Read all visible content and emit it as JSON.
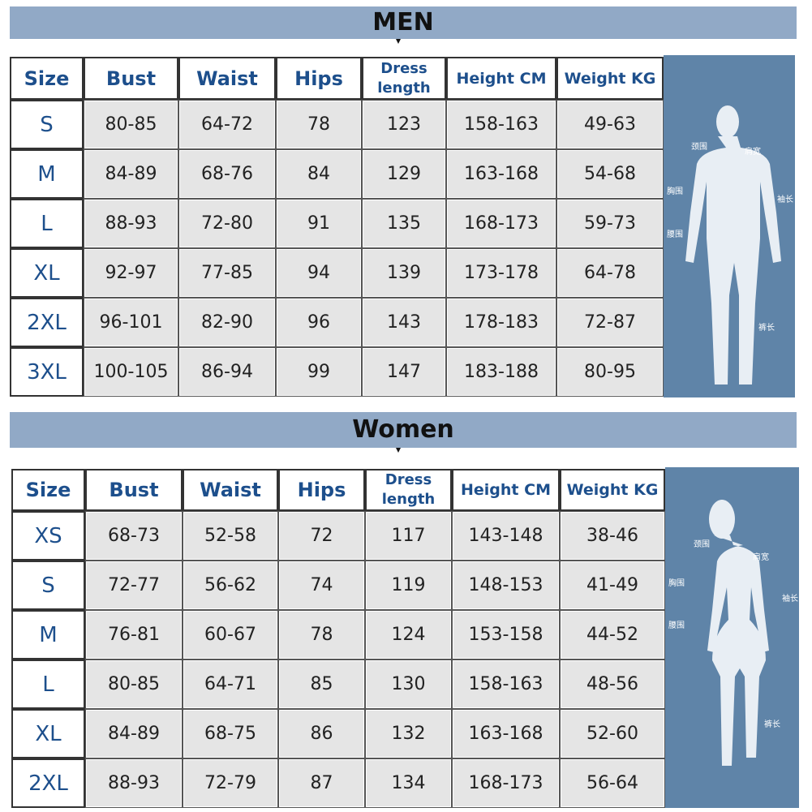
{
  "men": {
    "title": "MEN",
    "table": {
      "header": [
        "Size",
        "Bust",
        "Waist",
        "Hips",
        "Dress length",
        "Height CM",
        "Weight KG"
      ],
      "rows": [
        [
          "S",
          "80-85",
          "64-72",
          "78",
          "123",
          "158-163",
          "49-63"
        ],
        [
          "M",
          "84-89",
          "68-76",
          "84",
          "129",
          "163-168",
          "54-68"
        ],
        [
          "L",
          "88-93",
          "72-80",
          "91",
          "135",
          "168-173",
          "59-73"
        ],
        [
          "XL",
          "92-97",
          "77-85",
          "94",
          "139",
          "173-178",
          "64-78"
        ],
        [
          "2XL",
          "96-101",
          "82-90",
          "96",
          "143",
          "178-183",
          "72-87"
        ],
        [
          "3XL",
          "100-105",
          "86-94",
          "99",
          "147",
          "183-188",
          "80-95"
        ]
      ]
    },
    "figure_labels": [
      "颈围",
      "肩宽",
      "胸围",
      "袖长",
      "腰围",
      "裤长"
    ]
  },
  "women": {
    "title": "Women",
    "table": {
      "header": [
        "Size",
        "Bust",
        "Waist",
        "Hips",
        "Dress length",
        "Height CM",
        "Weight KG"
      ],
      "rows": [
        [
          "XS",
          "68-73",
          "52-58",
          "72",
          "117",
          "143-148",
          "38-46"
        ],
        [
          "S",
          "72-77",
          "56-62",
          "74",
          "119",
          "148-153",
          "41-49"
        ],
        [
          "M",
          "76-81",
          "60-67",
          "78",
          "124",
          "153-158",
          "44-52"
        ],
        [
          "L",
          "80-85",
          "64-71",
          "85",
          "130",
          "158-163",
          "48-56"
        ],
        [
          "XL",
          "84-89",
          "68-75",
          "86",
          "132",
          "163-168",
          "52-60"
        ],
        [
          "2XL",
          "88-93",
          "72-79",
          "87",
          "134",
          "168-173",
          "56-64"
        ]
      ]
    },
    "figure_labels": [
      "颈围",
      "肩宽",
      "胸围",
      "袖长",
      "腰围",
      "裤长"
    ]
  }
}
